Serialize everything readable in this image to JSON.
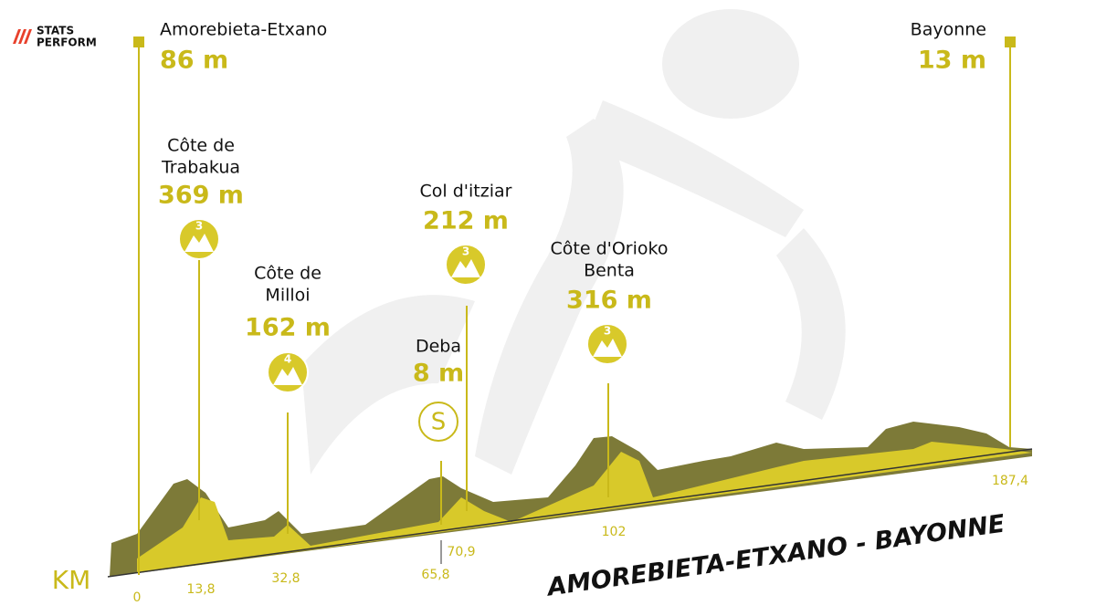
{
  "brand": [
    "STATS",
    "PERFORM"
  ],
  "start": {
    "name": "Amorebieta-Etxano",
    "altitude": "86 m"
  },
  "finish": {
    "name": "Bayonne",
    "altitude": "13 m"
  },
  "climbs": [
    {
      "name": [
        "Côte de",
        "Trabakua"
      ],
      "altitude": "369 m",
      "category": "3"
    },
    {
      "name": [
        "Côte de",
        "Milloi"
      ],
      "altitude": "162 m",
      "category": "4"
    },
    {
      "name": [
        "Col d'itziar"
      ],
      "altitude": "212 m",
      "category": "3"
    },
    {
      "name": [
        "Côte d'Orioko",
        "Benta"
      ],
      "altitude": "316 m",
      "category": "3"
    }
  ],
  "sprint": {
    "name": "Deba",
    "altitude": "8 m",
    "symbol": "S"
  },
  "axis": {
    "unit": "KM",
    "ticks": [
      "0",
      "13,8",
      "32,8",
      "65,8",
      "70,9",
      "102",
      "187,4"
    ]
  },
  "stage": "AMOREBIETA-ETXANO - BAYONNE"
}
